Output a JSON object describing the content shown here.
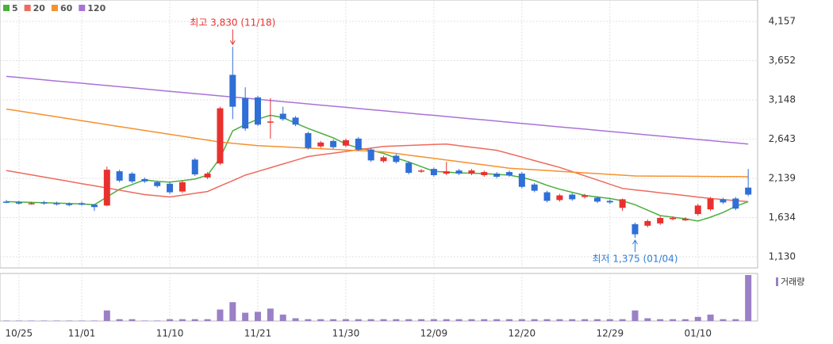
{
  "chart_data": {
    "type": "candlestick",
    "categories": [
      null,
      "10/25",
      null,
      null,
      null,
      null,
      "11/01",
      null,
      null,
      null,
      null,
      null,
      null,
      "11/10",
      null,
      null,
      null,
      null,
      null,
      null,
      "11/21",
      null,
      null,
      null,
      null,
      null,
      null,
      "11/30",
      null,
      null,
      null,
      null,
      null,
      null,
      "12/09",
      null,
      null,
      null,
      null,
      null,
      null,
      "12/20",
      null,
      null,
      null,
      null,
      null,
      null,
      "12/29",
      null,
      null,
      null,
      null,
      null,
      null,
      "01/10",
      null,
      null,
      null,
      null
    ],
    "open": [
      1840,
      1830,
      1810,
      1830,
      1820,
      1810,
      1820,
      1800,
      1790,
      2230,
      2200,
      2130,
      2090,
      2070,
      1970,
      2380,
      2150,
      2330,
      3470,
      3170,
      3180,
      2860,
      2970,
      2920,
      2720,
      2550,
      2620,
      2560,
      2650,
      2510,
      2360,
      2430,
      2340,
      2230,
      2260,
      2200,
      2240,
      2200,
      2180,
      2200,
      2220,
      2200,
      2060,
      1960,
      1860,
      1930,
      1900,
      1890,
      1850,
      1760,
      1550,
      1530,
      1560,
      1620,
      1600,
      1680,
      1740,
      1870,
      1880,
      2020
    ],
    "high": [
      1860,
      1850,
      1840,
      1850,
      1840,
      1830,
      1840,
      1810,
      2290,
      2250,
      2220,
      2150,
      2110,
      2090,
      2110,
      2400,
      2220,
      3060,
      3830,
      3310,
      3200,
      3170,
      3060,
      2940,
      2740,
      2620,
      2640,
      2650,
      2670,
      2530,
      2430,
      2450,
      2360,
      2260,
      2280,
      2350,
      2260,
      2260,
      2240,
      2220,
      2240,
      2220,
      2080,
      1980,
      1940,
      1950,
      1940,
      1910,
      1870,
      1880,
      1570,
      1610,
      1650,
      1650,
      1640,
      1810,
      1900,
      1890,
      1900,
      2260
    ],
    "low": [
      1820,
      1800,
      1800,
      1800,
      1790,
      1780,
      1790,
      1720,
      1780,
      2090,
      2080,
      2080,
      2020,
      1940,
      1950,
      2170,
      2130,
      2310,
      2900,
      2750,
      2810,
      2650,
      2880,
      2810,
      2510,
      2530,
      2520,
      2540,
      2490,
      2350,
      2340,
      2330,
      2190,
      2210,
      2160,
      2180,
      2180,
      2180,
      2160,
      2140,
      2160,
      2010,
      1960,
      1830,
      1840,
      1850,
      1880,
      1820,
      1810,
      1720,
      1375,
      1510,
      1540,
      1600,
      1590,
      1660,
      1720,
      1810,
      1730,
      1910
    ],
    "close": [
      1830,
      1820,
      1820,
      1820,
      1810,
      1800,
      1800,
      1770,
      2250,
      2110,
      2100,
      2100,
      2040,
      1960,
      2090,
      2190,
      2200,
      3040,
      3060,
      2780,
      2830,
      2870,
      2900,
      2830,
      2530,
      2600,
      2540,
      2630,
      2510,
      2370,
      2410,
      2350,
      2210,
      2240,
      2180,
      2230,
      2200,
      2240,
      2220,
      2160,
      2180,
      2030,
      1980,
      1850,
      1920,
      1870,
      1920,
      1840,
      1830,
      1870,
      1420,
      1590,
      1630,
      1630,
      1620,
      1790,
      1880,
      1830,
      1750,
      1930
    ],
    "up_color": "#e8312f",
    "down_color": "#2f6fd6",
    "series": [
      {
        "name": "5",
        "color": "#4cae3c",
        "values": [
          1840,
          1835,
          1830,
          1825,
          1820,
          1815,
          1810,
          1800,
          1900,
          2000,
          2060,
          2120,
          2100,
          2090,
          2110,
          2130,
          2180,
          2400,
          2750,
          2830,
          2900,
          2950,
          2920,
          2850,
          2780,
          2720,
          2660,
          2580,
          2530,
          2500,
          2460,
          2400,
          2350,
          2290,
          2230,
          2220,
          2210,
          2205,
          2200,
          2190,
          2180,
          2150,
          2110,
          2050,
          2000,
          1960,
          1920,
          1900,
          1880,
          1850,
          1800,
          1730,
          1660,
          1640,
          1620,
          1590,
          1640,
          1700,
          1780,
          1840
        ]
      },
      {
        "name": "20",
        "color": "#ee6a5e",
        "values": [
          2240,
          2212,
          2184,
          2156,
          2128,
          2100,
          2071,
          2043,
          2015,
          1987,
          1959,
          1930,
          1915,
          1900,
          1923,
          1947,
          1970,
          2040,
          2110,
          2180,
          2228,
          2276,
          2324,
          2372,
          2420,
          2442,
          2463,
          2485,
          2507,
          2528,
          2550,
          2556,
          2562,
          2568,
          2574,
          2580,
          2560,
          2540,
          2520,
          2500,
          2456,
          2412,
          2368,
          2324,
          2280,
          2226,
          2172,
          2118,
          2064,
          2010,
          1991,
          1973,
          1954,
          1936,
          1917,
          1899,
          1880,
          1867,
          1853,
          1840
        ]
      },
      {
        "name": "60",
        "color": "#f5912e",
        "values": [
          3030,
          3005,
          2980,
          2955,
          2930,
          2905,
          2880,
          2855,
          2830,
          2805,
          2780,
          2755,
          2730,
          2705,
          2680,
          2655,
          2630,
          2605,
          2590,
          2575,
          2560,
          2552,
          2544,
          2536,
          2528,
          2520,
          2512,
          2504,
          2496,
          2488,
          2480,
          2459,
          2438,
          2417,
          2396,
          2375,
          2354,
          2333,
          2312,
          2291,
          2270,
          2260,
          2250,
          2240,
          2230,
          2220,
          2210,
          2200,
          2190,
          2180,
          2170,
          2169,
          2168,
          2167,
          2166,
          2165,
          2164,
          2163,
          2162,
          2160
        ]
      },
      {
        "name": "120",
        "color": "#a873d8",
        "values": [
          3450,
          3435,
          3421,
          3406,
          3391,
          3376,
          3362,
          3347,
          3332,
          3317,
          3303,
          3288,
          3273,
          3258,
          3244,
          3229,
          3214,
          3199,
          3185,
          3170,
          3155,
          3140,
          3126,
          3111,
          3096,
          3081,
          3067,
          3052,
          3037,
          3022,
          3008,
          2993,
          2978,
          2963,
          2949,
          2934,
          2919,
          2904,
          2890,
          2875,
          2860,
          2845,
          2831,
          2816,
          2801,
          2786,
          2772,
          2757,
          2742,
          2727,
          2713,
          2698,
          2683,
          2668,
          2654,
          2639,
          2624,
          2609,
          2595,
          2580
        ]
      }
    ],
    "volume": {
      "name": "거래량",
      "color": "#9a80c6",
      "values": [
        1,
        1,
        1,
        1,
        1,
        1,
        1,
        1,
        23,
        4,
        4,
        1,
        1,
        4,
        4,
        4,
        4,
        25,
        41,
        18,
        20,
        27,
        14,
        6,
        4,
        4,
        4,
        4,
        4,
        4,
        4,
        4,
        4,
        4,
        4,
        4,
        4,
        4,
        4,
        4,
        4,
        4,
        4,
        4,
        4,
        4,
        4,
        4,
        4,
        4,
        23,
        6,
        4,
        4,
        4,
        9,
        14,
        4,
        4,
        100
      ]
    },
    "ylim": [
      998,
      4432
    ],
    "yticks": [
      {
        "value": 4157,
        "label": "4,157"
      },
      {
        "value": 3652,
        "label": "3,652"
      },
      {
        "value": 3148,
        "label": "3,148"
      },
      {
        "value": 2643,
        "label": "2,643"
      },
      {
        "value": 2139,
        "label": "2,139"
      },
      {
        "value": 1634,
        "label": "1,634"
      },
      {
        "value": 1130,
        "label": "1,130"
      }
    ],
    "grid": true,
    "annotations": [
      {
        "text": "최고 3,830 (11/18)",
        "color": "#e8312f"
      },
      {
        "text": "최저 1,375 (01/04)",
        "color": "#2f7fd6"
      }
    ]
  }
}
